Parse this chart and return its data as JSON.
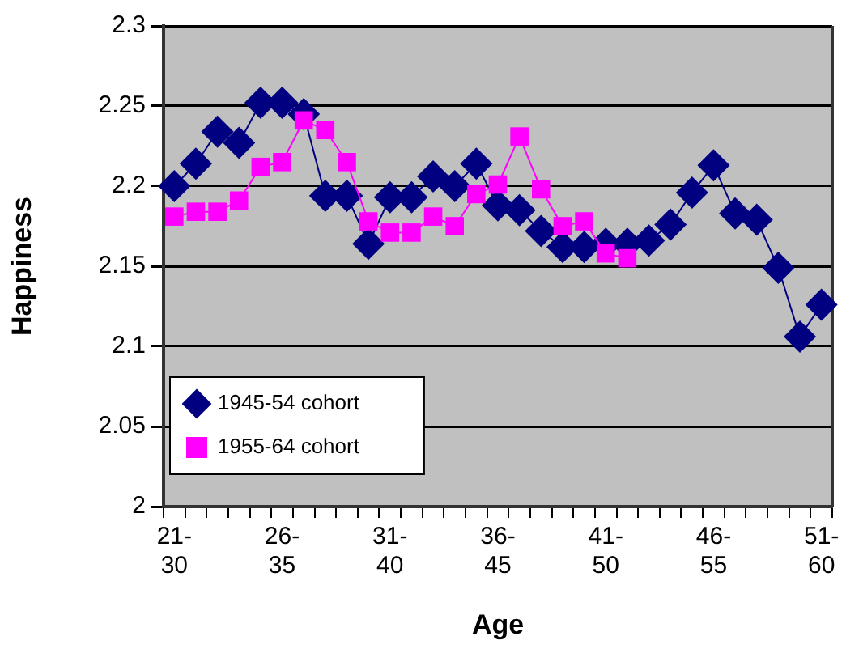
{
  "chart_data": {
    "type": "line",
    "xlabel": "Age",
    "ylabel": "Happiness",
    "categories": [
      "21-30",
      null,
      null,
      null,
      null,
      "26-35",
      null,
      null,
      null,
      null,
      "31-40",
      null,
      null,
      null,
      null,
      "36-45",
      null,
      null,
      null,
      null,
      "41-50",
      null,
      null,
      null,
      null,
      "46-55",
      null,
      null,
      null,
      null,
      "51-60"
    ],
    "series": [
      {
        "name": "1945-54 cohort",
        "color": "#000080",
        "marker": "diamond",
        "values": [
          2.2,
          2.214,
          2.234,
          2.227,
          2.252,
          2.252,
          2.245,
          2.194,
          2.194,
          2.164,
          2.193,
          2.193,
          2.206,
          2.2,
          2.214,
          2.188,
          2.185,
          2.172,
          2.162,
          2.162,
          2.164,
          2.164,
          2.166,
          2.176,
          2.196,
          2.213,
          2.183,
          2.179,
          2.149,
          2.106,
          2.126
        ]
      },
      {
        "name": "1955-64 cohort",
        "color": "#ff00ff",
        "marker": "square",
        "values": [
          2.181,
          2.184,
          2.184,
          2.191,
          2.212,
          2.215,
          2.241,
          2.235,
          2.215,
          2.178,
          2.171,
          2.171,
          2.181,
          2.175,
          2.195,
          2.201,
          2.231,
          2.198,
          2.175,
          2.178,
          2.158,
          2.155,
          null,
          null,
          null,
          null,
          null,
          null,
          null,
          null,
          null
        ]
      }
    ],
    "ylim": [
      2,
      2.3
    ],
    "yticks": [
      2,
      2.05,
      2.1,
      2.15,
      2.2,
      2.25,
      2.3
    ],
    "grid": "y",
    "legend": "bottom left"
  }
}
